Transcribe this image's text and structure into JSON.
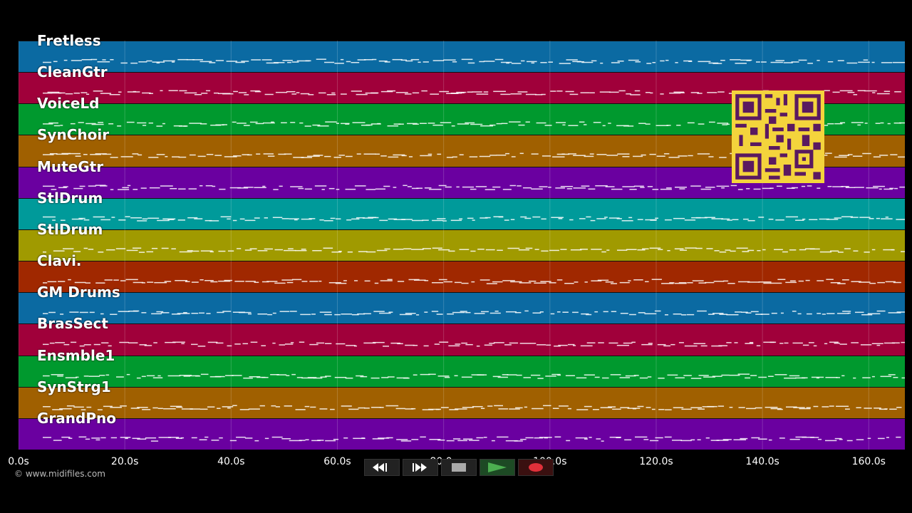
{
  "tracks": [
    {
      "name": "Fretless",
      "color": "#0b6aa2"
    },
    {
      "name": "CleanGtr",
      "color": "#a0003a"
    },
    {
      "name": "VoiceLd",
      "color": "#00992e"
    },
    {
      "name": "SynChoir",
      "color": "#a06000"
    },
    {
      "name": "MuteGtr",
      "color": "#6a00a0"
    },
    {
      "name": "StlDrum",
      "color": "#009a9a"
    },
    {
      "name": "StlDrum",
      "color": "#a09a00"
    },
    {
      "name": "Clavi.",
      "color": "#a02800"
    },
    {
      "name": "GM Drums",
      "color": "#0b6aa2"
    },
    {
      "name": "BrasSect",
      "color": "#a0003a"
    },
    {
      "name": "Ensmble1",
      "color": "#00992e"
    },
    {
      "name": "SynStrg1",
      "color": "#a06000"
    },
    {
      "name": "GrandPno",
      "color": "#6a00a0"
    }
  ],
  "time_axis": {
    "ticks": [
      "0.0s",
      "20.0s",
      "40.0s",
      "60.0s",
      "80.0s",
      "100.0s",
      "120.0s",
      "140.0s",
      "160.0s"
    ],
    "max_seconds": 166.8
  },
  "copyright": "© www.midifiles.com",
  "transport": {
    "rewind_icon": "rewind-icon",
    "fast_forward_icon": "fast-forward-icon",
    "stop_icon": "stop-icon",
    "play_icon": "play-icon",
    "record_icon": "record-icon"
  }
}
